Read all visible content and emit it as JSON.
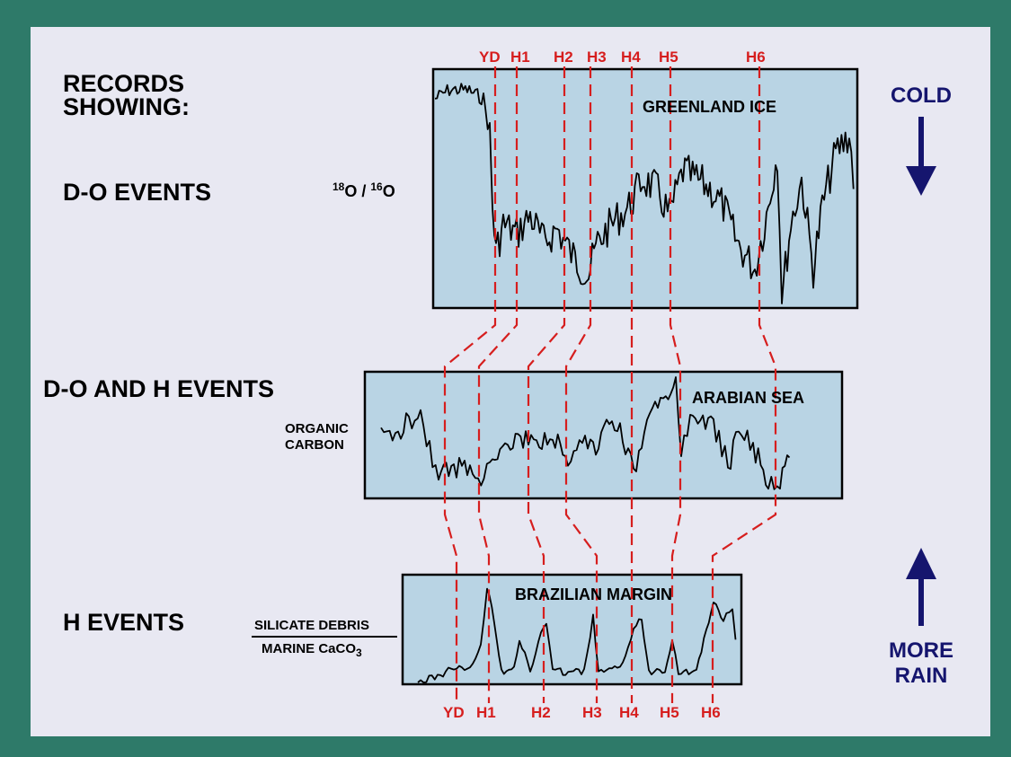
{
  "left_labels": {
    "records_line1": "RECORDS",
    "records_line2": "SHOWING:",
    "do_events": "D-O EVENTS",
    "do_h_events": "D-O AND H EVENTS",
    "h_events": "H EVENTS"
  },
  "axis_labels": {
    "iso_18": "18",
    "iso_o1": "O / ",
    "iso_16": "16",
    "iso_o2": "O",
    "organic_1": "ORGANIC",
    "organic_2": "CARBON",
    "ratio_top": "SILICATE DEBRIS",
    "ratio_bottom_main": "MARINE CaCO",
    "ratio_bottom_sub": "3"
  },
  "panels": {
    "greenland": "GREENLAND ICE",
    "arabian": "ARABIAN SEA",
    "brazilian": "BRAZILIAN MARGIN"
  },
  "indicators": {
    "cold": "COLD",
    "more_rain_1": "MORE",
    "more_rain_2": "RAIN"
  },
  "events_top": [
    "YD",
    "H1",
    "H2",
    "H3",
    "H4",
    "H5",
    "H6"
  ],
  "events_bottom": [
    "YD",
    "H1",
    "H2",
    "H3",
    "H4",
    "H5",
    "H6"
  ],
  "colors": {
    "frame": "#2e7a69",
    "panel": "#e8e8f2",
    "plot_fill": "#b9d4e4",
    "event_lines": "#d61e1e",
    "arrows": "#15156e"
  }
}
